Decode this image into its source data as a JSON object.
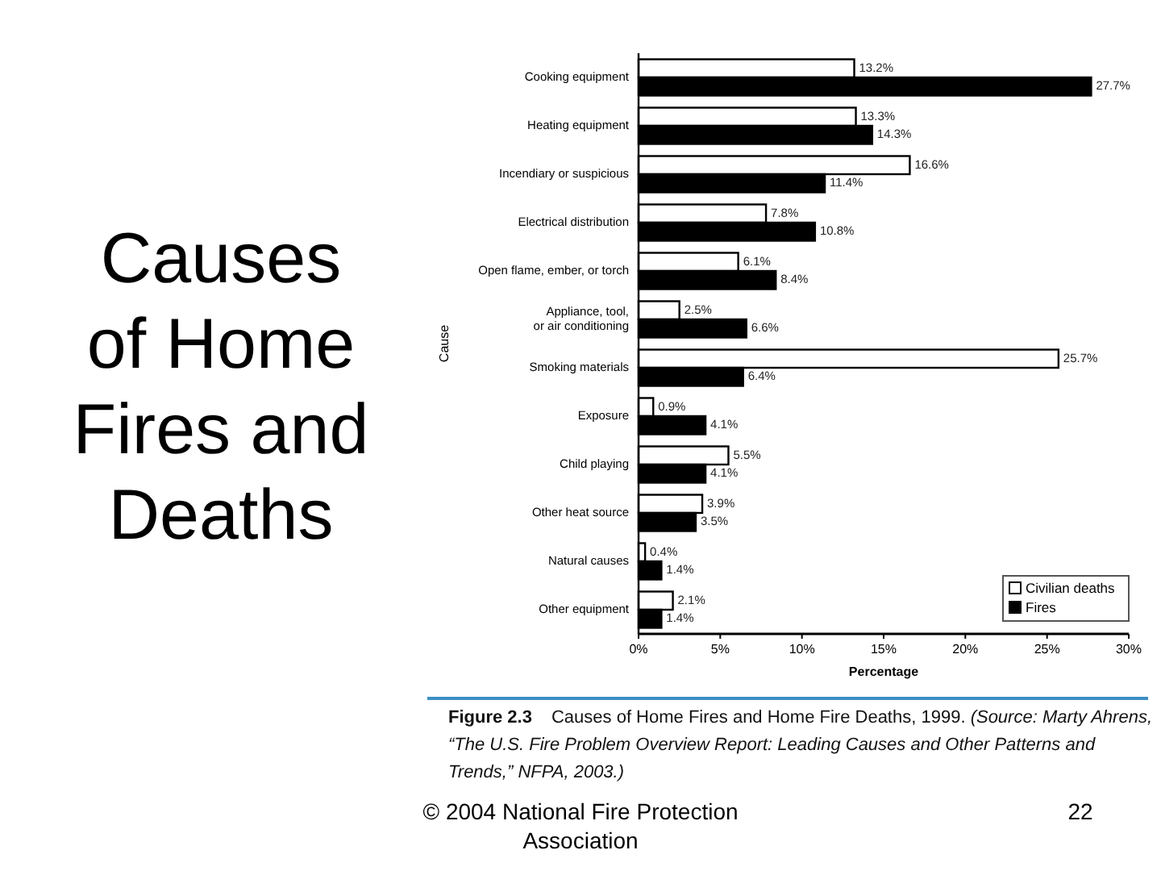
{
  "chart_data": {
    "type": "bar",
    "orientation": "horizontal",
    "title": "Causes of Home Fires and Deaths",
    "xlabel": "Percentage",
    "ylabel": "Cause",
    "categories": [
      "Cooking equipment",
      "Heating equipment",
      "Incendiary or suspicious",
      "Electrical distribution",
      "Open flame, ember, or torch",
      "Appliance, tool, or air conditioning",
      "Smoking materials",
      "Exposure",
      "Child playing",
      "Other heat source",
      "Natural causes",
      "Other equipment"
    ],
    "series": [
      {
        "name": "Civilian deaths",
        "color": "#ffffff",
        "values": [
          13.2,
          13.3,
          16.6,
          7.8,
          6.1,
          2.5,
          25.7,
          0.9,
          5.5,
          3.9,
          0.4,
          2.1
        ],
        "value_labels": [
          "13.2%",
          "13.3%",
          "16.6%",
          "7.8%",
          "6.1%",
          "2.5%",
          "25.7%",
          "0.9%",
          "5.5%",
          "3.9%",
          "0.4%",
          "2.1%"
        ]
      },
      {
        "name": "Fires",
        "color": "#000000",
        "values": [
          27.7,
          14.3,
          11.4,
          10.8,
          8.4,
          6.6,
          6.4,
          4.1,
          4.1,
          3.5,
          1.4,
          1.4
        ],
        "value_labels": [
          "27.7%",
          "14.3%",
          "11.4%",
          "10.8%",
          "8.4%",
          "6.6%",
          "6.4%",
          "4.1%",
          "4.1%",
          "3.5%",
          "1.4%",
          "1.4%"
        ]
      }
    ],
    "xlim": [
      0,
      30
    ],
    "xticks": [
      {
        "value": 0,
        "label": "0%"
      },
      {
        "value": 5,
        "label": "5%"
      },
      {
        "value": 10,
        "label": "10%"
      },
      {
        "value": 15,
        "label": "15%"
      },
      {
        "value": 20,
        "label": "20%"
      },
      {
        "value": 25,
        "label": "25%"
      },
      {
        "value": 30,
        "label": "30%"
      }
    ],
    "legend": "bottom right",
    "annotations": [
      "Figure 2.3 Causes of Home Fires and Home Fire Deaths, 1999. (Source: Marty Ahrens, “The U.S. Fire Problem Overview Report: Leading Causes and Other Patterns and Trends,” NFPA, 2003.)",
      "© 2004 National Fire Protection Association",
      "22"
    ]
  }
}
